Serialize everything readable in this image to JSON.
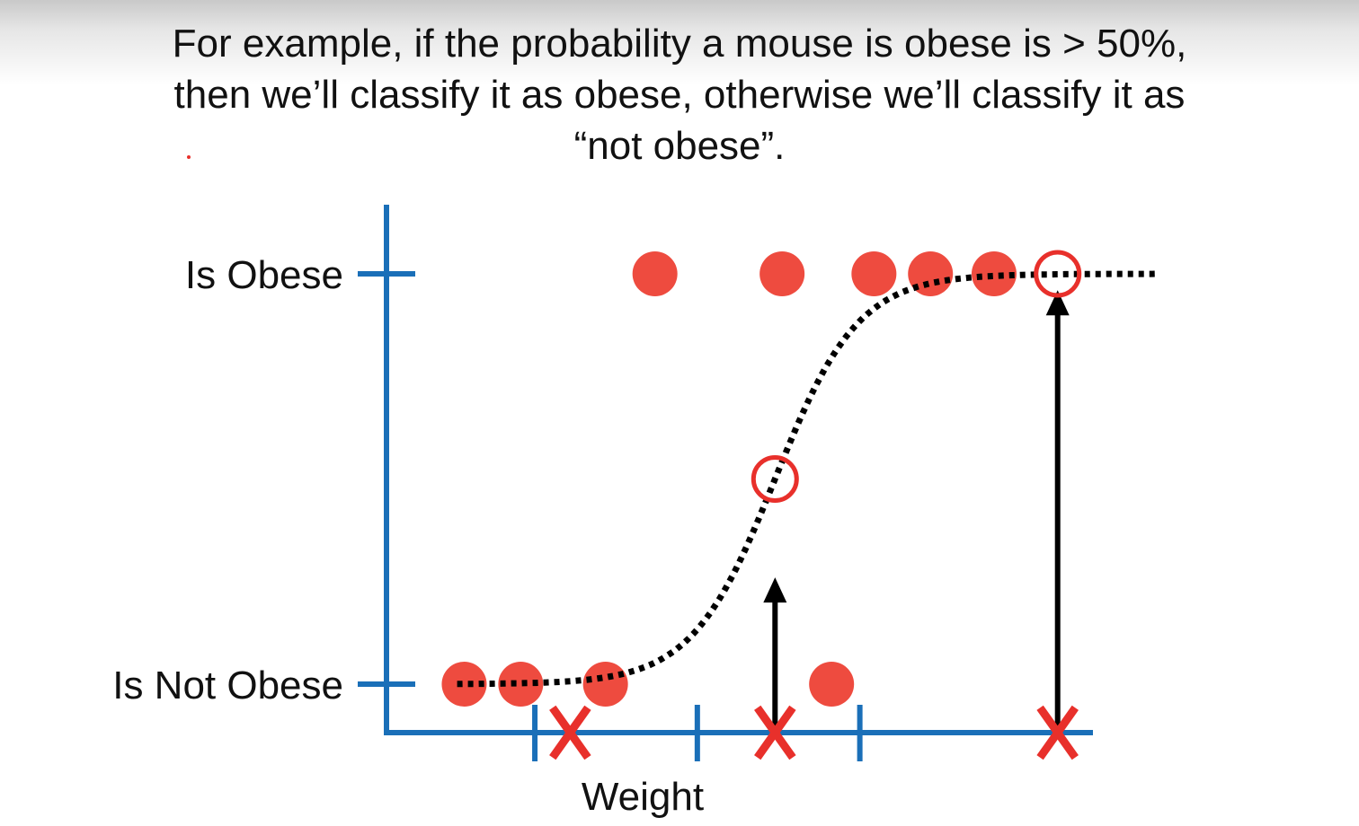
{
  "slide": {
    "caption_lines": [
      "For example, if the probability a mouse is obese is > 50%,",
      "then we’ll classify it as obese, otherwise we’ll classify it as",
      "“not obese”."
    ]
  },
  "chart_data": {
    "type": "scatter",
    "title": "",
    "xlabel": "Weight",
    "ylabel": "",
    "y_categories": [
      "Is Not Obese",
      "Is Obese"
    ],
    "colors": {
      "axis": "#1a6fb8",
      "points": "#ee4b3f",
      "marker_x": "#e8302b",
      "curve": "#000000",
      "arrow": "#000000"
    },
    "xlim": [
      0,
      10
    ],
    "ylim": [
      0,
      1
    ],
    "x_ticks": [
      2.1,
      4.4,
      6.7
    ],
    "series": [
      {
        "type": "points",
        "style": "filled",
        "points": [
          {
            "x": 1.1,
            "y": 0
          },
          {
            "x": 1.9,
            "y": 0
          },
          {
            "x": 3.1,
            "y": 0
          },
          {
            "x": 6.3,
            "y": 0
          },
          {
            "x": 3.8,
            "y": 1
          },
          {
            "x": 5.6,
            "y": 1
          },
          {
            "x": 6.9,
            "y": 1
          },
          {
            "x": 7.7,
            "y": 1
          },
          {
            "x": 8.6,
            "y": 1
          }
        ]
      },
      {
        "type": "logistic_curve",
        "style": "dotted",
        "x_range": [
          1.0,
          10.9
        ],
        "midpoint": 5.5,
        "steepness": 1.7
      },
      {
        "type": "predicted_points",
        "style": "open-circle",
        "points": [
          {
            "x": 5.5,
            "y": 0.5
          },
          {
            "x": 9.5,
            "y": 1
          }
        ]
      },
      {
        "type": "new_observations",
        "marker": "X",
        "x": [
          2.6,
          5.5,
          9.5
        ]
      }
    ],
    "annotations": [
      {
        "type": "arrow",
        "x": 5.5,
        "from_y": -0.12,
        "to_y": 0.26
      },
      {
        "type": "arrow",
        "x": 9.5,
        "from_y": -0.12,
        "to_y": 0.96
      }
    ]
  }
}
